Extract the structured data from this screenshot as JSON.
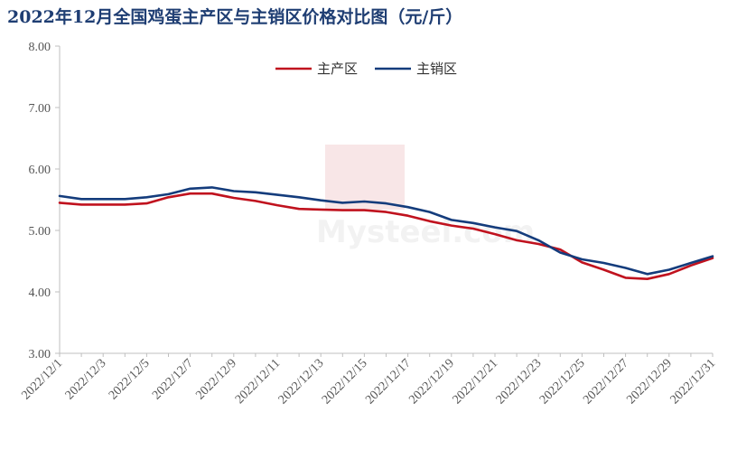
{
  "chart_data": {
    "type": "line",
    "title": "2022年12月全国鸡蛋主产区与主销区价格对比图（元/斤）",
    "xlabel": "",
    "ylabel": "",
    "ylim": [
      3.0,
      8.0
    ],
    "yticks": [
      "3.00",
      "4.00",
      "5.00",
      "6.00",
      "7.00",
      "8.00"
    ],
    "x_tick_labels": [
      "2022/12/1",
      "2022/12/3",
      "2022/12/5",
      "2022/12/7",
      "2022/12/9",
      "2022/12/11",
      "2022/12/13",
      "2022/12/15",
      "2022/12/17",
      "2022/12/19",
      "2022/12/21",
      "2022/12/23",
      "2022/12/25",
      "2022/12/27",
      "2022/12/29",
      "2022/12/31"
    ],
    "x": [
      "2022/12/1",
      "2022/12/2",
      "2022/12/3",
      "2022/12/4",
      "2022/12/5",
      "2022/12/6",
      "2022/12/7",
      "2022/12/8",
      "2022/12/9",
      "2022/12/10",
      "2022/12/11",
      "2022/12/12",
      "2022/12/13",
      "2022/12/14",
      "2022/12/15",
      "2022/12/16",
      "2022/12/17",
      "2022/12/18",
      "2022/12/19",
      "2022/12/20",
      "2022/12/21",
      "2022/12/22",
      "2022/12/23",
      "2022/12/24",
      "2022/12/25",
      "2022/12/26",
      "2022/12/27",
      "2022/12/28",
      "2022/12/29",
      "2022/12/30",
      "2022/12/31"
    ],
    "series": [
      {
        "name": "主产区",
        "color": "#c0121e",
        "values": [
          5.45,
          5.42,
          5.42,
          5.42,
          5.44,
          5.54,
          5.6,
          5.6,
          5.53,
          5.48,
          5.41,
          5.35,
          5.34,
          5.33,
          5.33,
          5.3,
          5.24,
          5.15,
          5.08,
          5.03,
          4.94,
          4.84,
          4.78,
          4.69,
          4.48,
          4.36,
          4.23,
          4.21,
          4.29,
          4.43,
          4.55
        ]
      },
      {
        "name": "主销区",
        "color": "#143c7c",
        "values": [
          5.56,
          5.51,
          5.51,
          5.51,
          5.54,
          5.59,
          5.68,
          5.7,
          5.64,
          5.62,
          5.58,
          5.54,
          5.49,
          5.45,
          5.47,
          5.44,
          5.38,
          5.3,
          5.17,
          5.12,
          5.05,
          4.99,
          4.84,
          4.64,
          4.53,
          4.47,
          4.39,
          4.29,
          4.36,
          4.47,
          4.58
        ]
      }
    ],
    "legend_position": "top-center",
    "grid": false
  }
}
